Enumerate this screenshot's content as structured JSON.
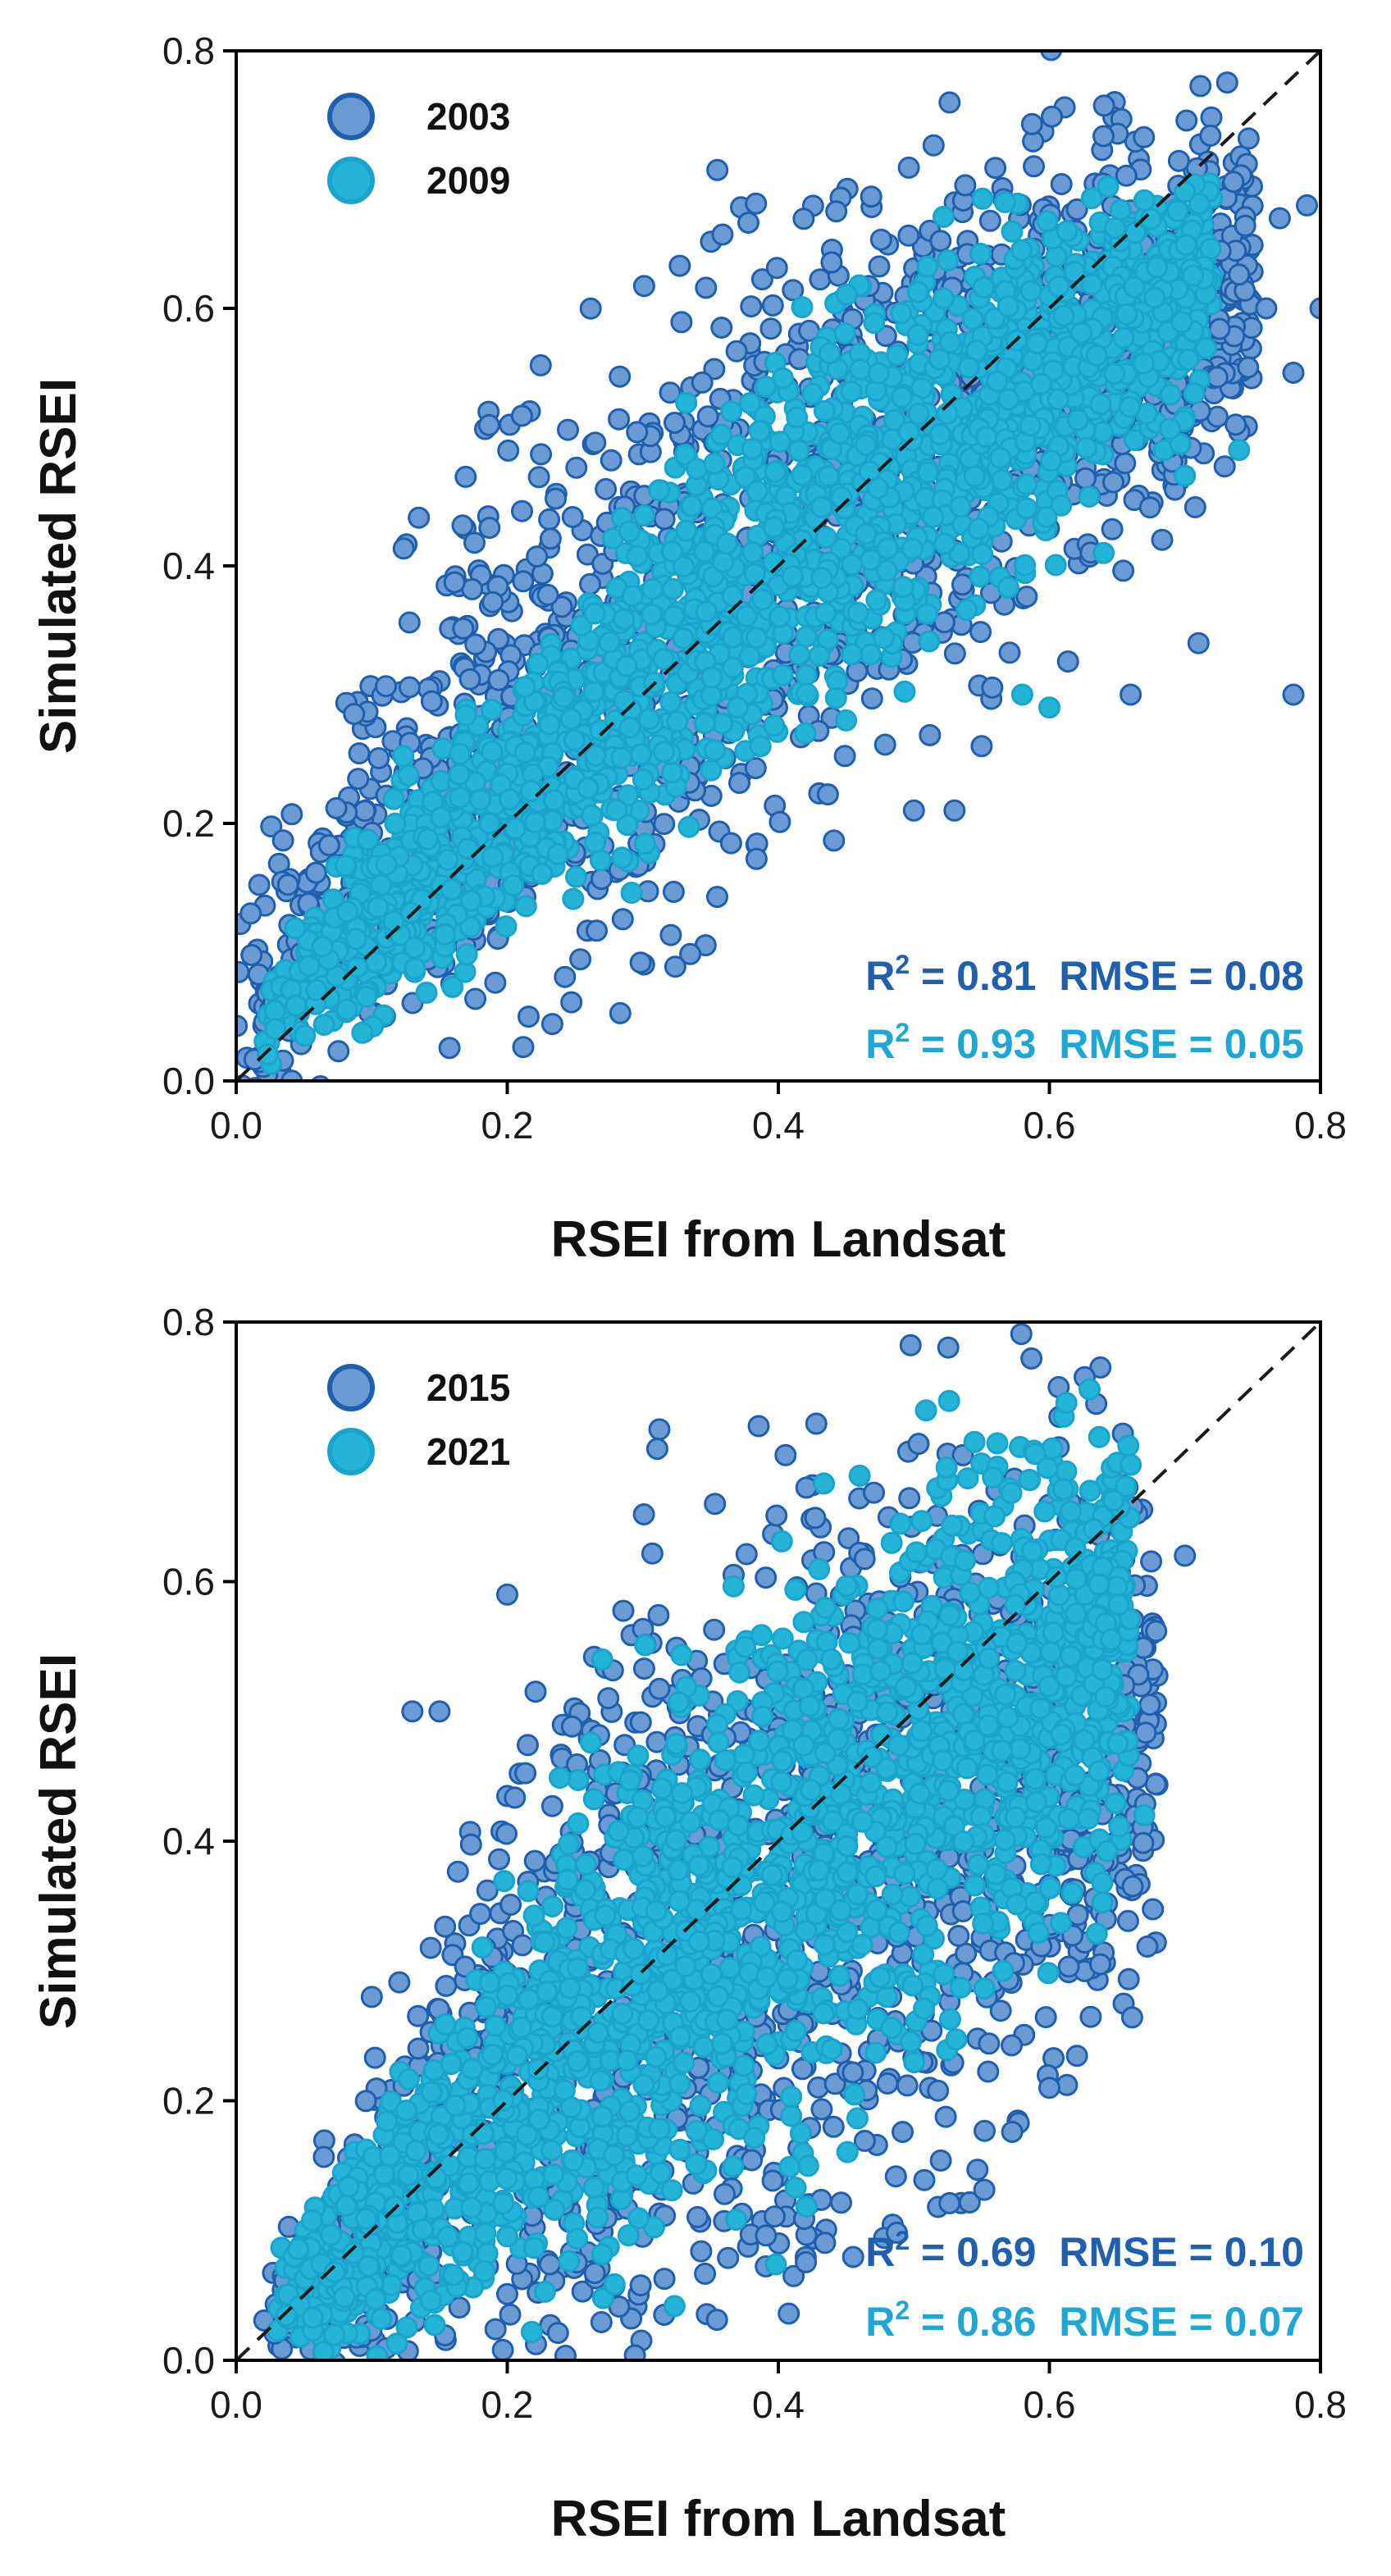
{
  "colors": {
    "background": "#ffffff",
    "axis": "#000000",
    "identity_line": "#1a1a1a",
    "series_a_fill": "#6b9bd4",
    "series_a_edge": "#1f5fad",
    "series_b_fill": "#24b4d8",
    "series_b_edge": "#1aa3cc",
    "stat_a": "#1f5fad",
    "stat_b": "#1ea7d2"
  },
  "chart_data": [
    {
      "type": "scatter",
      "xlabel": "RSEI from Landsat",
      "ylabel": "Simulated RSEI",
      "xlim": [
        0.0,
        0.8
      ],
      "ylim": [
        0.0,
        0.8
      ],
      "xticks": [
        "0.0",
        "0.2",
        "0.4",
        "0.6",
        "0.8"
      ],
      "yticks": [
        "0.0",
        "0.2",
        "0.4",
        "0.6",
        "0.8"
      ],
      "legend_position": "top-left",
      "identity_line": true,
      "series": [
        {
          "name": "2003",
          "stat_r2_prefix": "R",
          "stat_r2_sup": "2",
          "stat_text": " = 0.81  RMSE = 0.08",
          "r2": 0.81,
          "rmse": 0.08,
          "ridge": [
            [
              0.0,
              0.03,
              0.2
            ],
            [
              0.05,
              0.1,
              0.15
            ],
            [
              0.1,
              0.16,
              0.26
            ],
            [
              0.15,
              0.22,
              0.3
            ],
            [
              0.2,
              0.28,
              0.34
            ],
            [
              0.3,
              0.36,
              0.38
            ],
            [
              0.4,
              0.43,
              0.38
            ],
            [
              0.5,
              0.5,
              0.34
            ],
            [
              0.6,
              0.56,
              0.28
            ],
            [
              0.7,
              0.6,
              0.24
            ],
            [
              0.75,
              0.62,
              0.2
            ]
          ],
          "outliers": [
            [
              0.79,
              0.68
            ],
            [
              0.77,
              0.67
            ],
            [
              0.8,
              0.6
            ],
            [
              0.78,
              0.55
            ],
            [
              0.76,
              0.6
            ],
            [
              0.78,
              0.3
            ],
            [
              0.66,
              0.3
            ],
            [
              0.71,
              0.34
            ],
            [
              0.55,
              0.26
            ],
            [
              0.5,
              0.21
            ],
            [
              0.53,
              0.21
            ],
            [
              0.62,
              0.66
            ]
          ]
        },
        {
          "name": "2009",
          "stat_r2_prefix": "R",
          "stat_r2_sup": "2",
          "stat_text": " = 0.93  RMSE = 0.05",
          "r2": 0.93,
          "rmse": 0.05,
          "ridge": [
            [
              0.02,
              0.05,
              0.05
            ],
            [
              0.1,
              0.12,
              0.12
            ],
            [
              0.2,
              0.22,
              0.16
            ],
            [
              0.3,
              0.32,
              0.2
            ],
            [
              0.4,
              0.41,
              0.22
            ],
            [
              0.5,
              0.49,
              0.22
            ],
            [
              0.6,
              0.55,
              0.18
            ],
            [
              0.7,
              0.61,
              0.14
            ],
            [
              0.72,
              0.64,
              0.1
            ]
          ],
          "outliers": [
            [
              0.74,
              0.49
            ],
            [
              0.7,
              0.47
            ],
            [
              0.64,
              0.41
            ],
            [
              0.6,
              0.29
            ],
            [
              0.58,
              0.3
            ],
            [
              0.45,
              0.28
            ],
            [
              0.42,
              0.27
            ],
            [
              0.37,
              0.29
            ]
          ]
        }
      ]
    },
    {
      "type": "scatter",
      "xlabel": "RSEI from Landsat",
      "ylabel": "Simulated RSEI",
      "xlim": [
        0.0,
        0.8
      ],
      "ylim": [
        0.0,
        0.8
      ],
      "xticks": [
        "0.0",
        "0.2",
        "0.4",
        "0.6",
        "0.8"
      ],
      "yticks": [
        "0.0",
        "0.2",
        "0.4",
        "0.6",
        "0.8"
      ],
      "legend_position": "top-left",
      "identity_line": true,
      "series": [
        {
          "name": "2015",
          "stat_r2_prefix": "R",
          "stat_r2_sup": "2",
          "stat_text": " = 0.69  RMSE = 0.10",
          "r2": 0.69,
          "rmse": 0.1,
          "ridge": [
            [
              0.02,
              0.04,
              0.05
            ],
            [
              0.1,
              0.1,
              0.18
            ],
            [
              0.2,
              0.22,
              0.36
            ],
            [
              0.3,
              0.3,
              0.48
            ],
            [
              0.4,
              0.36,
              0.52
            ],
            [
              0.5,
              0.42,
              0.48
            ],
            [
              0.6,
              0.46,
              0.4
            ],
            [
              0.68,
              0.5,
              0.3
            ]
          ],
          "outliers": [
            [
              0.2,
              0.59
            ],
            [
              0.13,
              0.5
            ],
            [
              0.15,
              0.5
            ],
            [
              0.7,
              0.62
            ],
            [
              0.6,
              0.21
            ],
            [
              0.47,
              0.56
            ],
            [
              0.1,
              0.28
            ]
          ]
        },
        {
          "name": "2021",
          "stat_r2_prefix": "R",
          "stat_r2_sup": "2",
          "stat_text": " = 0.86  RMSE = 0.07",
          "r2": 0.86,
          "rmse": 0.07,
          "ridge": [
            [
              0.03,
              0.05,
              0.06
            ],
            [
              0.1,
              0.1,
              0.12
            ],
            [
              0.2,
              0.2,
              0.22
            ],
            [
              0.3,
              0.3,
              0.3
            ],
            [
              0.4,
              0.38,
              0.34
            ],
            [
              0.5,
              0.45,
              0.34
            ],
            [
              0.6,
              0.52,
              0.3
            ],
            [
              0.66,
              0.57,
              0.22
            ]
          ],
          "outliers": [
            [
              0.66,
              0.69
            ],
            [
              0.63,
              0.67
            ],
            [
              0.27,
              0.54
            ],
            [
              0.67,
              0.42
            ]
          ]
        }
      ]
    }
  ]
}
